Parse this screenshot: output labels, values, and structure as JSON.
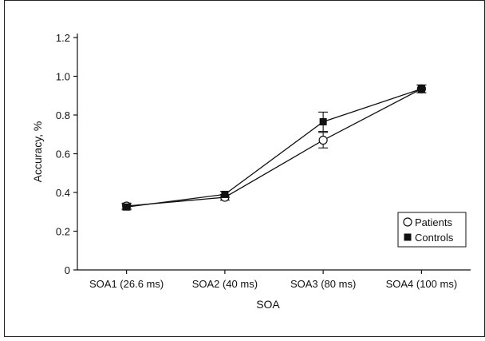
{
  "chart_data": {
    "type": "line",
    "title": "",
    "xlabel": "SOA",
    "ylabel": "Accuracy, %",
    "categories": [
      "SOA1 (26.6 ms)",
      "SOA2 (40 ms)",
      "SOA3 (80 ms)",
      "SOA4 (100 ms)"
    ],
    "ylim": [
      0,
      1.2
    ],
    "yticks": [
      "0",
      "0.2",
      "0.4",
      "0.6",
      "0.8",
      "1.0",
      "1.2"
    ],
    "grid": false,
    "legend_position": "bottom-right",
    "series": [
      {
        "name": "Patients",
        "marker": "open-circle",
        "values": [
          0.33,
          0.375,
          0.67,
          0.935
        ],
        "errors": [
          0.015,
          0.015,
          0.04,
          0.02
        ]
      },
      {
        "name": "Controls",
        "marker": "filled-square",
        "values": [
          0.325,
          0.39,
          0.765,
          0.935
        ],
        "errors": [
          0.015,
          0.015,
          0.05,
          0.02
        ]
      }
    ]
  }
}
